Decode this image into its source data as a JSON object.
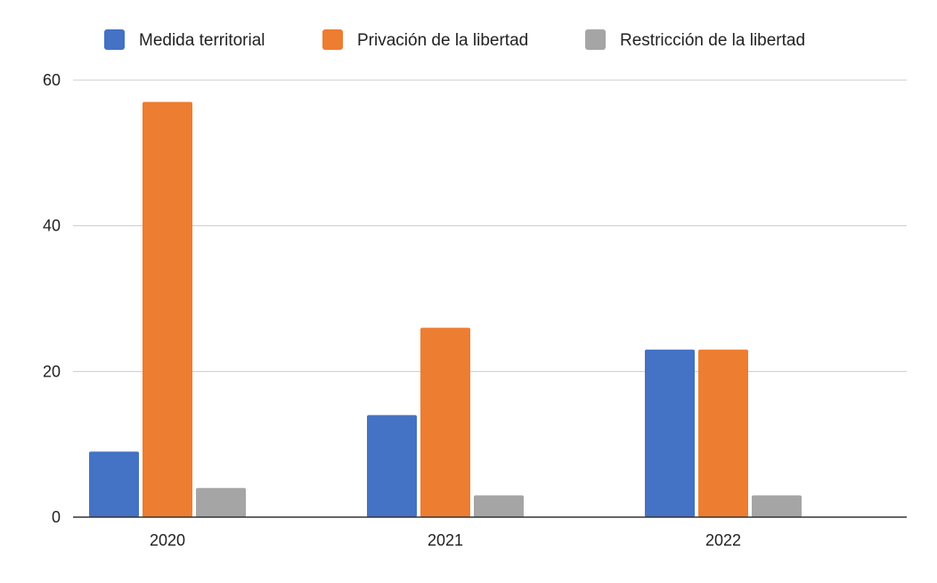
{
  "chart_data": {
    "type": "bar",
    "title": "",
    "xlabel": "",
    "ylabel": "",
    "categories": [
      "2020",
      "2021",
      "2022"
    ],
    "series": [
      {
        "name": "Medida territorial",
        "values": [
          9,
          14,
          23
        ],
        "color": "#4472C4"
      },
      {
        "name": "Privación de la libertad",
        "values": [
          57,
          26,
          23
        ],
        "color": "#ED7D31"
      },
      {
        "name": "Restricción de la libertad",
        "values": [
          4,
          3,
          3
        ],
        "color": "#A5A5A5"
      }
    ],
    "ylim": [
      0,
      60
    ],
    "yticks": [
      "0",
      "20",
      "40",
      "60"
    ],
    "grid": true,
    "legend_position": "top"
  }
}
